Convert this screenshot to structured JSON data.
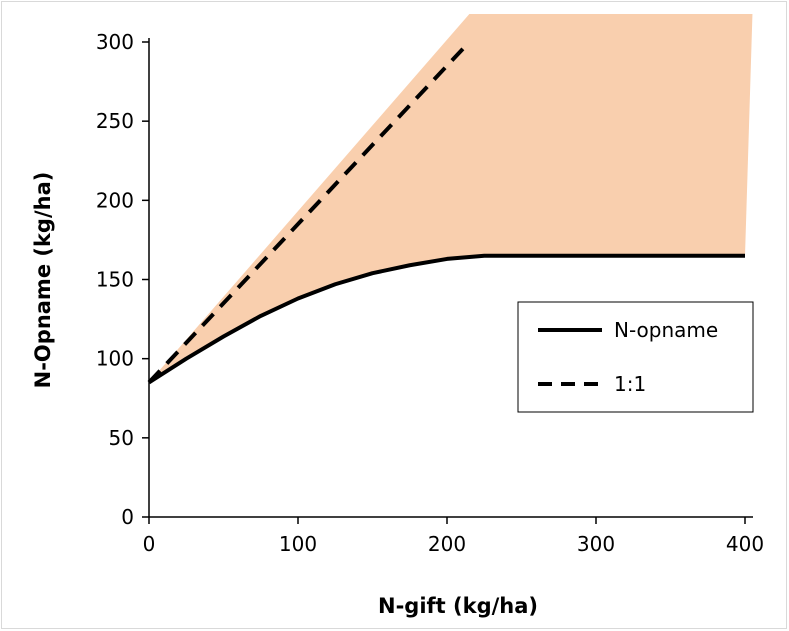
{
  "chart_data": {
    "type": "line",
    "title": "",
    "xlabel": "N-gift (kg/ha)",
    "ylabel": "N-Opname (kg/ha)",
    "xlim": [
      0,
      400
    ],
    "ylim": [
      0,
      300
    ],
    "x_ticks": [
      0,
      100,
      200,
      300,
      400
    ],
    "y_ticks": [
      0,
      50,
      100,
      150,
      200,
      250,
      300
    ],
    "grid": false,
    "legend_position": "right",
    "series": [
      {
        "name": "N-opname",
        "style": "solid",
        "color": "#000000",
        "x": [
          0,
          25,
          50,
          75,
          100,
          125,
          150,
          175,
          200,
          225,
          235,
          300,
          400
        ],
        "y": [
          85,
          100,
          114,
          127,
          138,
          147,
          154,
          159,
          163,
          165,
          165,
          165,
          165
        ]
      },
      {
        "name": "1:1",
        "style": "dashed",
        "color": "#000000",
        "x": [
          0,
          215
        ],
        "y": [
          85,
          300
        ]
      }
    ],
    "fill_region": {
      "color": "#f9cfae",
      "upper_x": [
        0,
        215,
        400,
        403,
        405
      ],
      "upper_y": [
        85,
        300,
        300,
        300,
        300
      ],
      "lower_note": "between 1:1 line and N-opname curve"
    }
  }
}
